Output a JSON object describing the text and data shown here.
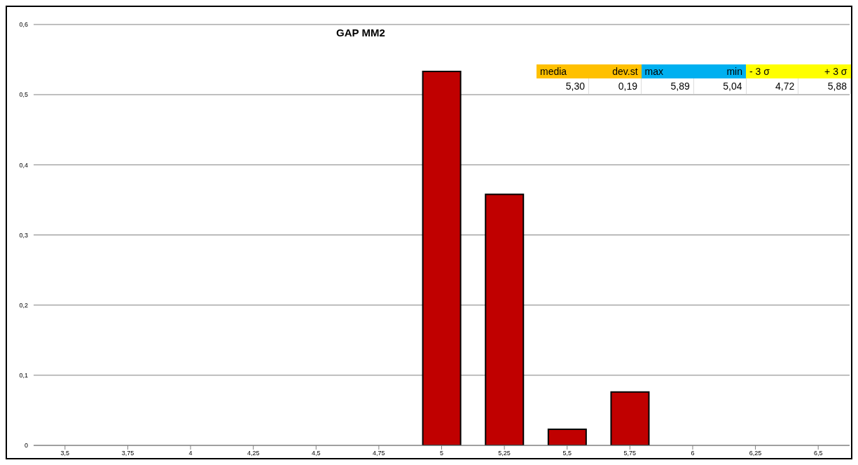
{
  "chart_data": {
    "type": "bar",
    "title": "GAP MM2",
    "categories": [
      "3,5",
      "3,75",
      "4",
      "4,25",
      "4,5",
      "4,75",
      "5",
      "5,25",
      "5,5",
      "5,75",
      "6",
      "6,25",
      "6,5"
    ],
    "values": [
      0,
      0,
      0,
      0,
      0,
      0,
      0.533,
      0.358,
      0.023,
      0.076,
      0,
      0,
      0
    ],
    "color": "#c00000",
    "ylim": [
      0,
      0.6
    ],
    "yticks": [
      {
        "value": 0,
        "label": "0"
      },
      {
        "value": 0.1,
        "label": "0,1"
      },
      {
        "value": 0.2,
        "label": "0,2"
      },
      {
        "value": 0.3,
        "label": "0,3"
      },
      {
        "value": 0.4,
        "label": "0,4"
      },
      {
        "value": 0.5,
        "label": "0,5"
      },
      {
        "value": 0.6,
        "label": "0,6"
      }
    ],
    "grid": "y",
    "annotations": [
      "media",
      "dev.st",
      "max",
      "min",
      "- 3 σ",
      "+ 3 σ",
      "5,30",
      "0,19",
      "5,89",
      "5,04",
      "4,72",
      "5,88"
    ]
  }
}
